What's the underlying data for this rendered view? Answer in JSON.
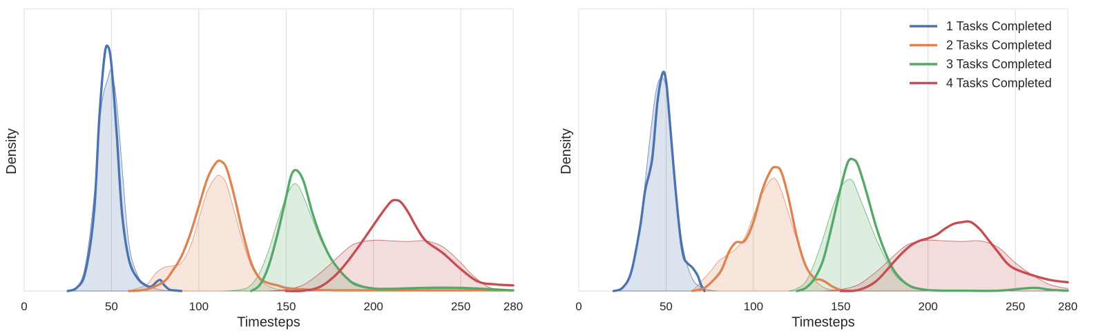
{
  "chart_data": [
    {
      "type": "area",
      "xlabel": "Timesteps",
      "ylabel": "Density",
      "xlim": [
        0,
        280
      ],
      "ylim": [
        0,
        0.09
      ],
      "xticks": [
        0,
        50,
        100,
        150,
        200,
        250,
        280
      ],
      "grid": "vertical",
      "legend": "none",
      "series": [
        {
          "name": "1 Tasks Completed",
          "color": "#4c72b0",
          "line": {
            "x": [
              25,
              30,
              35,
              40,
              43,
              46,
              48,
              50,
              53,
              56,
              60,
              65,
              70,
              73,
              76,
              78,
              80,
              83,
              86,
              90
            ],
            "y": [
              0,
              0.001,
              0.006,
              0.025,
              0.055,
              0.075,
              0.078,
              0.072,
              0.05,
              0.025,
              0.01,
              0.004,
              0.0017,
              0.0015,
              0.003,
              0.0035,
              0.002,
              0.0005,
              0.0002,
              0
            ]
          },
          "fill": {
            "x": [
              25,
              30,
              35,
              40,
              44,
              48,
              50,
              53,
              56,
              60,
              65,
              70,
              75,
              80,
              85
            ],
            "y": [
              0,
              0.001,
              0.008,
              0.03,
              0.058,
              0.068,
              0.07,
              0.06,
              0.04,
              0.015,
              0.005,
              0.002,
              0.0008,
              0.0002,
              0
            ]
          }
        },
        {
          "name": "2 Tasks Completed",
          "color": "#dd8452",
          "line": {
            "x": [
              60,
              70,
              80,
              85,
              90,
              95,
              100,
              105,
              110,
              113,
              116,
              120,
              125,
              130,
              135,
              140,
              145,
              150,
              160,
              170,
              180,
              200,
              240,
              280
            ],
            "y": [
              0,
              0.0005,
              0.003,
              0.0065,
              0.011,
              0.018,
              0.027,
              0.036,
              0.041,
              0.0413,
              0.039,
              0.031,
              0.019,
              0.009,
              0.004,
              0.0025,
              0.0018,
              0.001,
              0.0005,
              0.0003,
              0.0002,
              0.0002,
              0.0002,
              0.0002
            ]
          },
          "fill": {
            "x": [
              60,
              70,
              75,
              80,
              85,
              90,
              95,
              100,
              105,
              110,
              113,
              116,
              120,
              125,
              130,
              135,
              140,
              145,
              150,
              160
            ],
            "y": [
              0,
              0.002,
              0.0055,
              0.0075,
              0.008,
              0.009,
              0.014,
              0.023,
              0.032,
              0.0365,
              0.0365,
              0.034,
              0.026,
              0.016,
              0.008,
              0.0035,
              0.0015,
              0.0006,
              0.0002,
              0
            ]
          }
        },
        {
          "name": "3 Tasks Completed",
          "color": "#55a868",
          "line": {
            "x": [
              130,
              135,
              140,
              145,
              150,
              153,
              156,
              160,
              165,
              170,
              175,
              180,
              185,
              190,
              200,
              210,
              230,
              250,
              280
            ],
            "y": [
              0,
              0.002,
              0.008,
              0.018,
              0.03,
              0.037,
              0.0385,
              0.035,
              0.025,
              0.017,
              0.011,
              0.007,
              0.004,
              0.002,
              0.0008,
              0.0007,
              0.001,
              0.001,
              0.0002
            ]
          },
          "fill": {
            "x": [
              115,
              125,
              130,
              135,
              140,
              145,
              150,
              154,
              157,
              160,
              165,
              170,
              175,
              180,
              185,
              190,
              195,
              200,
              210,
              220
            ],
            "y": [
              0,
              0.0005,
              0.002,
              0.006,
              0.013,
              0.022,
              0.03,
              0.034,
              0.0335,
              0.03,
              0.023,
              0.016,
              0.011,
              0.007,
              0.004,
              0.0025,
              0.0015,
              0.001,
              0.0005,
              0
            ]
          }
        },
        {
          "name": "4 Tasks Completed",
          "color": "#c44e52",
          "line": {
            "x": [
              150,
              160,
              170,
              180,
              190,
              200,
              205,
              210,
              213,
              216,
              220,
              225,
              230,
              240,
              250,
              260,
              270,
              280
            ],
            "y": [
              0,
              0.0001,
              0.0015,
              0.006,
              0.013,
              0.021,
              0.025,
              0.0285,
              0.029,
              0.0282,
              0.025,
              0.02,
              0.016,
              0.012,
              0.007,
              0.003,
              0.0021,
              0.0018
            ]
          },
          "fill": {
            "x": [
              140,
              150,
              160,
              170,
              180,
              185,
              190,
              200,
              210,
              220,
              230,
              240,
              250,
              255,
              260,
              265,
              270,
              275
            ],
            "y": [
              0,
              0.0005,
              0.002,
              0.006,
              0.011,
              0.0135,
              0.0152,
              0.0162,
              0.016,
              0.0158,
              0.016,
              0.014,
              0.009,
              0.006,
              0.0035,
              0.0015,
              0.0005,
              0
            ]
          }
        }
      ]
    },
    {
      "type": "area",
      "xlabel": "Timesteps",
      "ylabel": "Density",
      "xlim": [
        0,
        280
      ],
      "ylim": [
        0,
        0.09
      ],
      "xticks": [
        0,
        50,
        100,
        150,
        200,
        250,
        280
      ],
      "grid": "vertical",
      "legend": "top-right",
      "series": [
        {
          "name": "1 Tasks Completed",
          "color": "#4c72b0",
          "line": {
            "x": [
              20,
              25,
              30,
              35,
              38,
              42,
              45,
              48,
              50,
              52,
              55,
              58,
              60,
              62,
              65,
              68,
              70,
              72
            ],
            "y": [
              0,
              0.001,
              0.006,
              0.02,
              0.032,
              0.042,
              0.06,
              0.0695,
              0.067,
              0.055,
              0.035,
              0.018,
              0.011,
              0.009,
              0.0075,
              0.005,
              0.002,
              0
            ]
          },
          "fill": {
            "x": [
              20,
              25,
              30,
              35,
              40,
              44,
              47,
              50,
              53,
              56,
              60,
              65,
              70,
              75,
              80
            ],
            "y": [
              0,
              0.001,
              0.006,
              0.02,
              0.045,
              0.063,
              0.068,
              0.065,
              0.05,
              0.03,
              0.013,
              0.004,
              0.0012,
              0.0003,
              0
            ]
          }
        },
        {
          "name": "2 Tasks Completed",
          "color": "#dd8452",
          "line": {
            "x": [
              65,
              72,
              78,
              82,
              86,
              90,
              95,
              100,
              105,
              110,
              113,
              116,
              120,
              125,
              130,
              135,
              138,
              141,
              145,
              150,
              155
            ],
            "y": [
              0,
              0.001,
              0.004,
              0.007,
              0.0125,
              0.0155,
              0.016,
              0.022,
              0.032,
              0.0385,
              0.0395,
              0.038,
              0.03,
              0.017,
              0.008,
              0.004,
              0.0037,
              0.003,
              0.0015,
              0.0003,
              0
            ]
          },
          "fill": {
            "x": [
              65,
              75,
              80,
              85,
              90,
              95,
              100,
              105,
              110,
              113,
              116,
              120,
              125,
              130,
              135,
              140,
              145,
              150,
              160
            ],
            "y": [
              0,
              0.006,
              0.0095,
              0.0115,
              0.0135,
              0.017,
              0.024,
              0.031,
              0.0355,
              0.0355,
              0.032,
              0.025,
              0.016,
              0.008,
              0.0035,
              0.0012,
              0.0004,
              0.0001,
              0
            ]
          }
        },
        {
          "name": "3 Tasks Completed",
          "color": "#55a868",
          "line": {
            "x": [
              125,
              130,
              135,
              140,
              145,
              150,
              154,
              157,
              160,
              165,
              170,
              175,
              180,
              185,
              190,
              195,
              200,
              210,
              220,
              240,
              255,
              262,
              270,
              280
            ],
            "y": [
              0,
              0.001,
              0.004,
              0.01,
              0.021,
              0.033,
              0.041,
              0.042,
              0.04,
              0.031,
              0.021,
              0.013,
              0.007,
              0.0035,
              0.0015,
              0.0007,
              0.0003,
              0.0001,
              0.0001,
              0.0001,
              0.0008,
              0.001,
              0.0004,
              0.0001
            ]
          },
          "fill": {
            "x": [
              120,
              125,
              130,
              135,
              140,
              145,
              150,
              154,
              157,
              160,
              165,
              170,
              175,
              180,
              185,
              190,
              195,
              200,
              210,
              220
            ],
            "y": [
              0,
              0.0008,
              0.003,
              0.009,
              0.017,
              0.026,
              0.033,
              0.0355,
              0.035,
              0.031,
              0.024,
              0.017,
              0.011,
              0.006,
              0.003,
              0.0015,
              0.0008,
              0.0004,
              0.0001,
              0
            ]
          }
        },
        {
          "name": "4 Tasks Completed",
          "color": "#c44e52",
          "line": {
            "x": [
              150,
              160,
              170,
              180,
              185,
              190,
              195,
              200,
              205,
              210,
              215,
              220,
              223,
              226,
              230,
              235,
              240,
              245,
              250,
              260,
              270,
              280
            ],
            "y": [
              0,
              0.0003,
              0.003,
              0.009,
              0.012,
              0.0145,
              0.016,
              0.0168,
              0.018,
              0.02,
              0.0215,
              0.022,
              0.0222,
              0.0215,
              0.0195,
              0.016,
              0.0125,
              0.009,
              0.007,
              0.005,
              0.0035,
              0.0028
            ]
          },
          "fill": {
            "x": [
              140,
              150,
              160,
              170,
              180,
              185,
              190,
              200,
              210,
              220,
              230,
              240,
              250,
              260,
              270,
              280
            ],
            "y": [
              0,
              0.0005,
              0.002,
              0.006,
              0.011,
              0.0135,
              0.0152,
              0.0162,
              0.016,
              0.0158,
              0.016,
              0.014,
              0.009,
              0.005,
              0.002,
              0.0008
            ]
          }
        }
      ]
    }
  ]
}
